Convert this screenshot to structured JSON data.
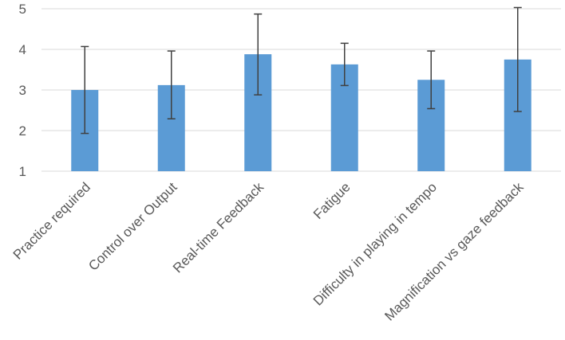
{
  "chart_data": {
    "type": "bar",
    "title": "",
    "xlabel": "",
    "ylabel": "",
    "ylim": [
      1,
      5
    ],
    "yticks": [
      1,
      2,
      3,
      4,
      5
    ],
    "grid": true,
    "bar_color": "#5b9bd5",
    "categories": [
      "Practice required",
      "Control over Output",
      "Real-time Feedback",
      "Fatigue",
      "Difficulty in playing in tempo",
      "Magnification vs  gaze feedback"
    ],
    "values": [
      3.0,
      3.12,
      3.88,
      3.63,
      3.25,
      3.75
    ],
    "error_low": [
      1.93,
      2.29,
      2.88,
      3.11,
      2.54,
      2.47
    ],
    "error_high": [
      4.07,
      3.96,
      4.87,
      4.15,
      3.96,
      5.03
    ]
  }
}
